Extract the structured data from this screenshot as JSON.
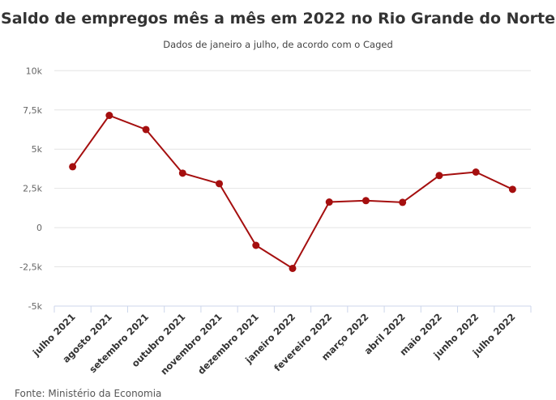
{
  "chart_data": {
    "type": "line",
    "title": "Saldo de empregos mês a mês em 2022 no Rio Grande do Norte",
    "subtitle": "Dados de janeiro a julho, de acordo com o Caged",
    "source": "Fonte: Ministério da Economia",
    "xlabel": "",
    "ylabel": "",
    "ylim": [
      -5000,
      10000
    ],
    "yticks": [
      -5000,
      -2500,
      0,
      2500,
      5000,
      7500,
      10000
    ],
    "ytick_labels": [
      "-5k",
      "-2,5k",
      "0",
      "2,5k",
      "5k",
      "7,5k",
      "10k"
    ],
    "grid": true,
    "categories": [
      "julho 2021",
      "agosto 2021",
      "setembro 2021",
      "outubro 2021",
      "novembro 2021",
      "dezembro 2021",
      "janeiro 2022",
      "fevereiro 2022",
      "março 2022",
      "abril 2022",
      "maio 2022",
      "junho 2022",
      "julho 2022"
    ],
    "values": [
      3880,
      7150,
      6250,
      3470,
      2800,
      -1130,
      -2600,
      1630,
      1720,
      1610,
      3320,
      3540,
      2440
    ],
    "color": "#a50f0f"
  }
}
